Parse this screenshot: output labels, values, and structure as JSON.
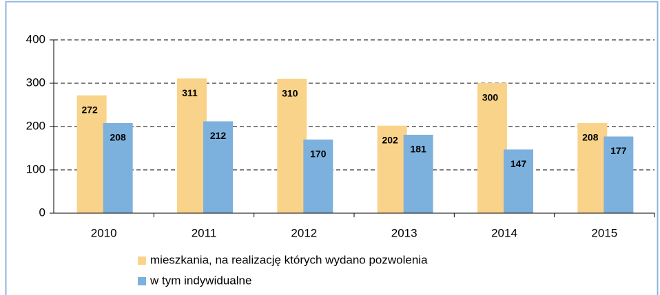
{
  "chart_data": {
    "type": "bar",
    "categories": [
      "2010",
      "2011",
      "2012",
      "2013",
      "2014",
      "2015"
    ],
    "series": [
      {
        "name": "mieszkania, na realizację których wydano pozwolenia",
        "color": "#fad38a",
        "values": [
          272,
          311,
          310,
          202,
          300,
          208
        ]
      },
      {
        "name": "w tym indywidualne",
        "color": "#7cb1de",
        "values": [
          208,
          212,
          170,
          181,
          147,
          177
        ]
      }
    ],
    "ylim": [
      0,
      400
    ],
    "yticks": [
      0,
      100,
      200,
      300,
      400
    ],
    "grid": true,
    "legend": "bottom"
  }
}
